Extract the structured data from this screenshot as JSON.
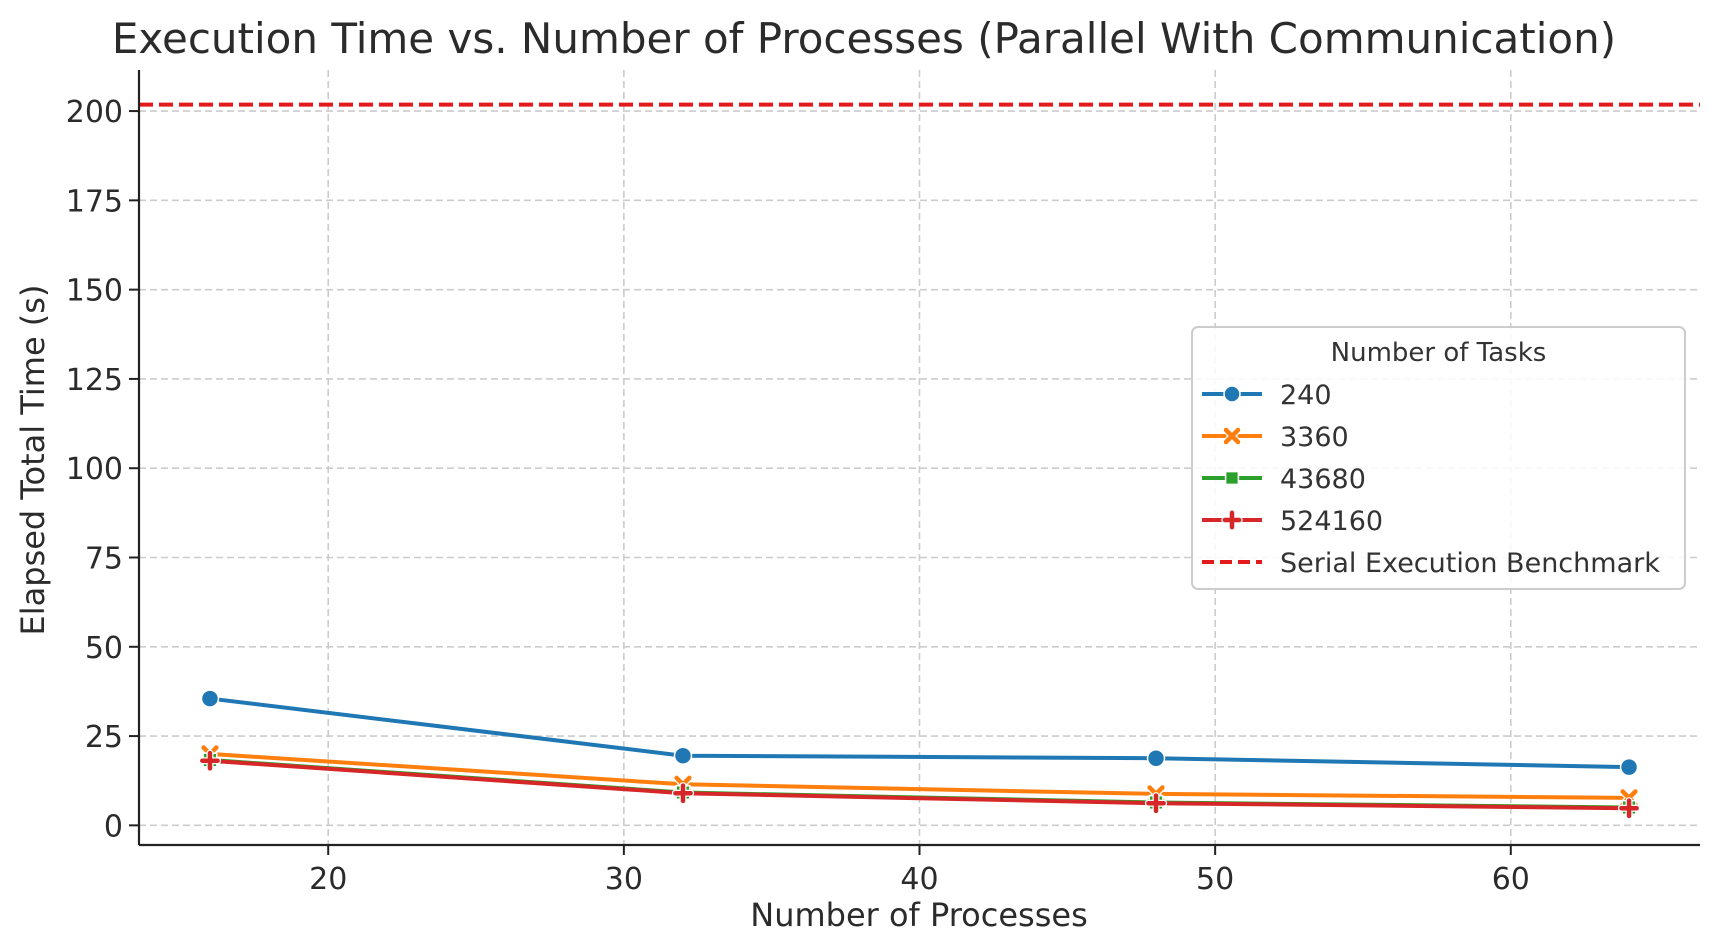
{
  "chart_data": {
    "type": "line",
    "title": "Execution Time vs. Number of Processes (Parallel With Communication)",
    "xlabel": "Number of Processes",
    "ylabel": "Elapsed Total Time (s)",
    "xlim": [
      13.6,
      66.4
    ],
    "ylim": [
      -5.5,
      211.5
    ],
    "x_ticks": [
      20,
      30,
      40,
      50,
      60
    ],
    "y_ticks": [
      0,
      25,
      50,
      75,
      100,
      125,
      150,
      175,
      200
    ],
    "grid": true,
    "legend": {
      "title": "Number of Tasks",
      "placement": "center-right"
    },
    "x": [
      16,
      32,
      48,
      64
    ],
    "series": [
      {
        "name": "240",
        "values": [
          35.5,
          19.5,
          18.8,
          16.3
        ],
        "color": "#1f77b4",
        "marker": "circle"
      },
      {
        "name": "3360",
        "values": [
          20.0,
          11.5,
          8.8,
          7.7
        ],
        "color": "#ff7f0e",
        "marker": "x"
      },
      {
        "name": "43680",
        "values": [
          18.3,
          9.2,
          6.4,
          5.0
        ],
        "color": "#2ca02c",
        "marker": "square"
      },
      {
        "name": "524160",
        "values": [
          18.1,
          9.0,
          6.2,
          4.8
        ],
        "color": "#d62728",
        "marker": "plus"
      }
    ],
    "reference_lines": [
      {
        "name": "Serial Execution Benchmark",
        "y": 201.8,
        "color": "#e31a1c",
        "style": "dashed"
      }
    ]
  }
}
